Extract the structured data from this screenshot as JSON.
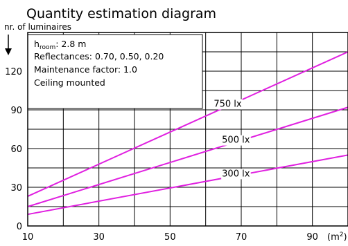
{
  "chart_data": {
    "type": "line",
    "title": "Quantity estimation diagram",
    "ylabel": "nr. of luminaires",
    "xlabel_base": "(m",
    "xlabel_sup": "2",
    "xlabel_end": ")",
    "xlim": [
      10,
      100
    ],
    "ylim": [
      0,
      150
    ],
    "x_ticks": [
      10,
      30,
      50,
      70,
      90
    ],
    "y_ticks": [
      0,
      30,
      60,
      90,
      120
    ],
    "info": {
      "h_base": "h",
      "h_sub": "room",
      "h_value": ": 2.8 m",
      "reflectances": "Reflectances:  0.70, 0.50, 0.20",
      "maintenance": "Maintenance factor:  1.0",
      "mounting": "Ceiling mounted"
    },
    "line_color": "#e020e0",
    "series": [
      {
        "name": "750 lx",
        "x": [
          10,
          100
        ],
        "y": [
          23,
          135
        ],
        "label_x": 66.2
      },
      {
        "name": "500 lx",
        "x": [
          10,
          100
        ],
        "y": [
          15,
          92
        ],
        "label_x": 68.5
      },
      {
        "name": "300 lx",
        "x": [
          10,
          100
        ],
        "y": [
          9,
          55
        ],
        "label_x": 68.5
      }
    ]
  }
}
